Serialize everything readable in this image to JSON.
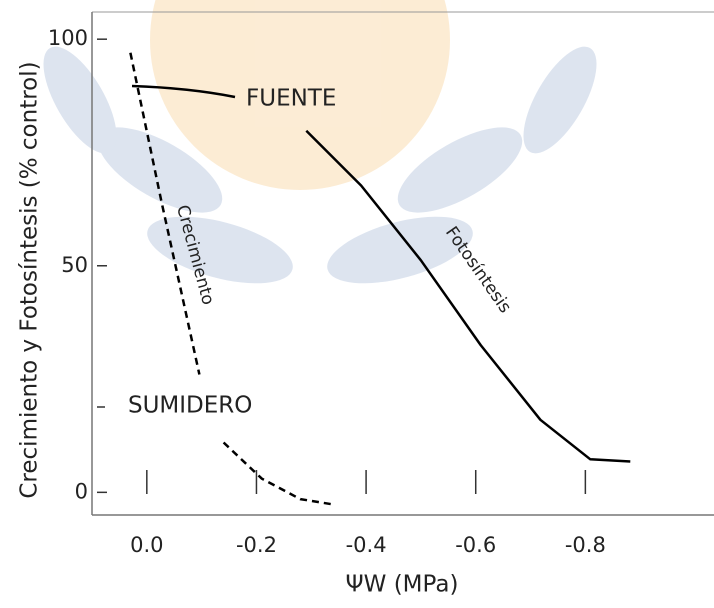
{
  "chart_data": {
    "type": "line",
    "xlabel": "ΨW  (MPa)",
    "ylabel": "Crecimiento y Fotosíntesis  (% control)",
    "x": [
      0.03,
      -0.027,
      -0.096,
      null,
      -0.14,
      -0.21,
      -0.28,
      -0.336
    ],
    "xlim": [
      0.1,
      -1.0
    ],
    "ylim": [
      -5,
      106
    ],
    "xticks": [
      {
        "value": 0,
        "label": "0.0"
      },
      -0.2,
      -0.4,
      -0.6,
      -0.8
    ],
    "yticks": [
      0,
      50,
      100
    ],
    "series": [
      {
        "name": "Crecimiento",
        "color": "#000000",
        "dashed": true,
        "x": [
          0.03,
          -0.027,
          -0.096,
          null,
          -0.14,
          -0.21,
          -0.28,
          -0.336
        ],
        "values": [
          97,
          64,
          26,
          null,
          11,
          3,
          -1.5,
          -2.6
        ]
      },
      {
        "name": "Fotosíntesis",
        "color": "#000000",
        "dashed": false,
        "x": [
          -0.291,
          -0.391,
          -0.5,
          -0.609,
          -0.718,
          -0.809,
          -0.882
        ],
        "values": [
          79.8,
          67.7,
          51.2,
          32.5,
          16,
          7.3,
          6.8
        ]
      }
    ],
    "annotations": [
      "FUENTE",
      "SUMIDERO"
    ]
  }
}
